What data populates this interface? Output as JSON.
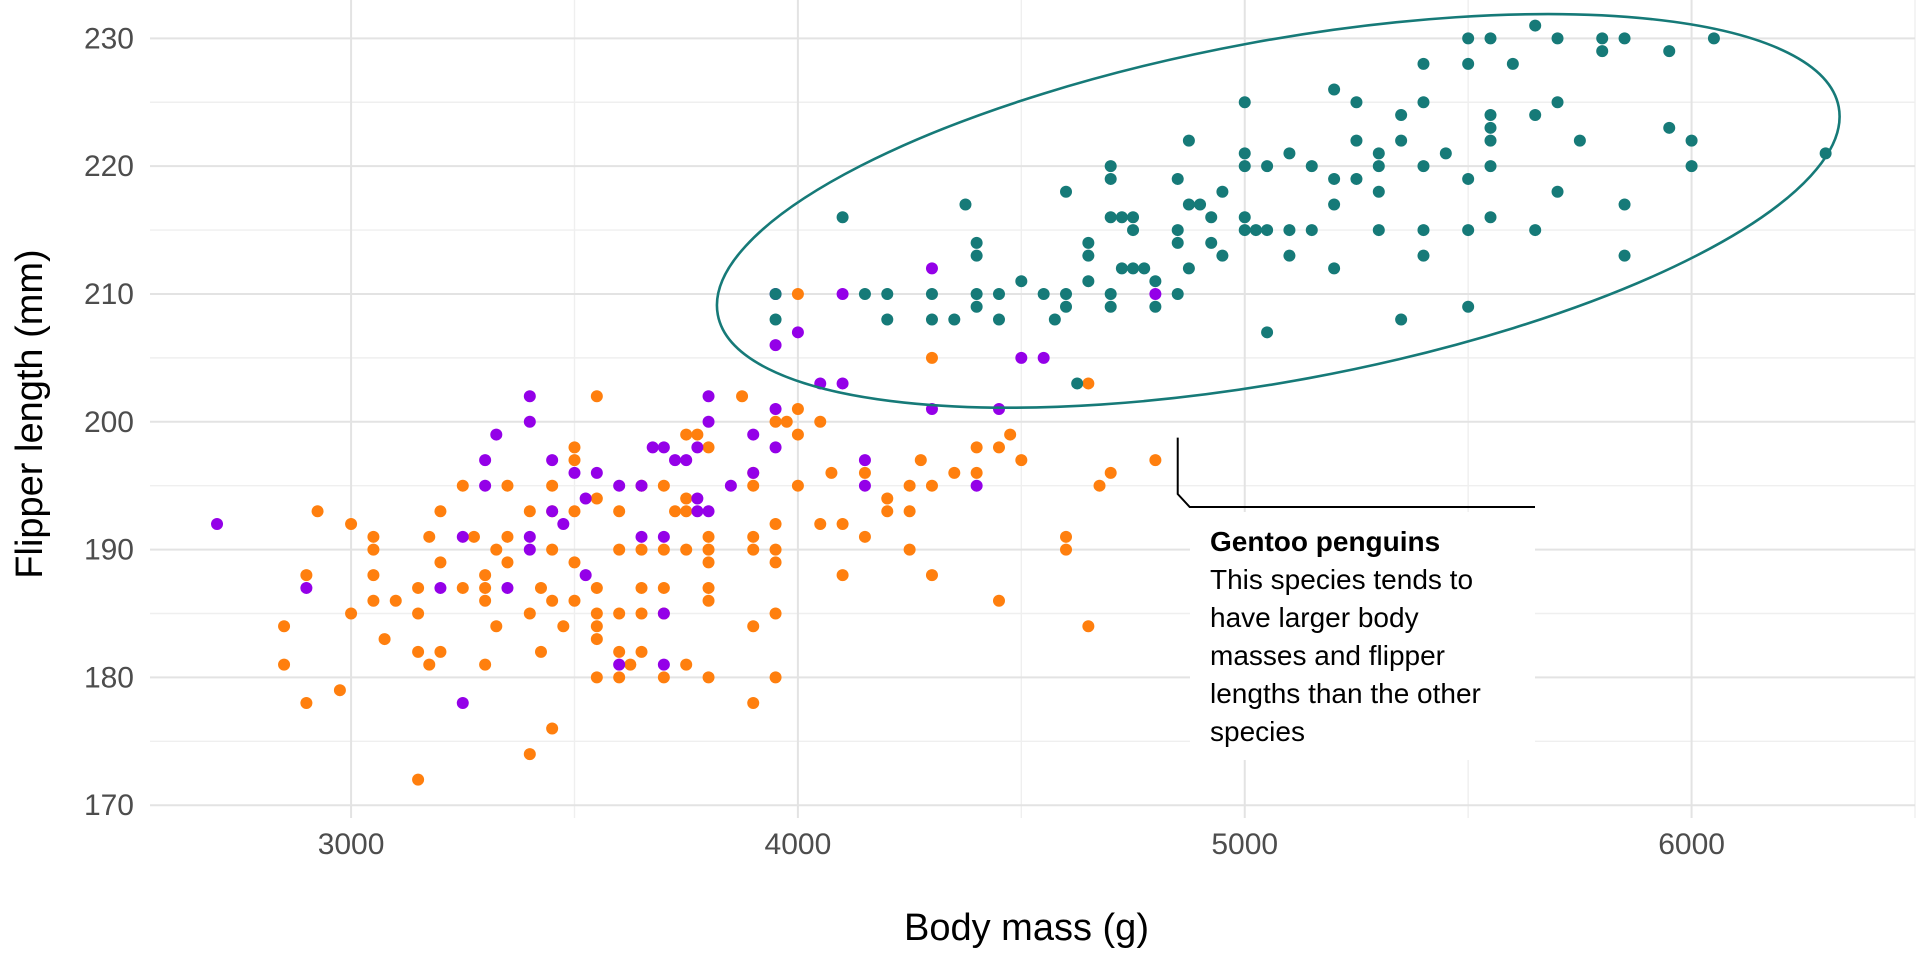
{
  "chart_data": {
    "type": "scatter",
    "title": "",
    "xlabel": "Body mass (g)",
    "ylabel": "Flipper length (mm)",
    "xlim": [
      2550,
      6500
    ],
    "ylim": [
      169,
      233
    ],
    "x_ticks": [
      3000,
      4000,
      5000,
      6000
    ],
    "y_ticks": [
      170,
      180,
      190,
      200,
      210,
      220,
      230
    ],
    "grid": true,
    "legend": "none",
    "point_radius_note": "",
    "series": [
      {
        "color": "#FF7F0E",
        "points": [
          [
            2850,
            184
          ],
          [
            2850,
            181
          ],
          [
            2900,
            188
          ],
          [
            2900,
            178
          ],
          [
            2925,
            193
          ],
          [
            2975,
            179
          ],
          [
            3000,
            192
          ],
          [
            3000,
            185
          ],
          [
            3050,
            191
          ],
          [
            3050,
            190
          ],
          [
            3050,
            188
          ],
          [
            3050,
            186
          ],
          [
            3075,
            183
          ],
          [
            3100,
            186
          ],
          [
            3150,
            187
          ],
          [
            3150,
            185
          ],
          [
            3150,
            182
          ],
          [
            3150,
            172
          ],
          [
            3175,
            191
          ],
          [
            3175,
            181
          ],
          [
            3200,
            193
          ],
          [
            3200,
            189
          ],
          [
            3200,
            182
          ],
          [
            3250,
            195
          ],
          [
            3250,
            187
          ],
          [
            3275,
            191
          ],
          [
            3300,
            188
          ],
          [
            3300,
            187
          ],
          [
            3300,
            186
          ],
          [
            3300,
            181
          ],
          [
            3325,
            190
          ],
          [
            3325,
            184
          ],
          [
            3350,
            195
          ],
          [
            3350,
            191
          ],
          [
            3350,
            189
          ],
          [
            3400,
            193
          ],
          [
            3400,
            185
          ],
          [
            3400,
            174
          ],
          [
            3425,
            182
          ],
          [
            3425,
            187
          ],
          [
            3450,
            195
          ],
          [
            3450,
            193
          ],
          [
            3450,
            190
          ],
          [
            3450,
            186
          ],
          [
            3450,
            176
          ],
          [
            3475,
            184
          ],
          [
            3500,
            198
          ],
          [
            3500,
            197
          ],
          [
            3500,
            193
          ],
          [
            3500,
            189
          ],
          [
            3500,
            186
          ],
          [
            3550,
            202
          ],
          [
            3550,
            194
          ],
          [
            3550,
            187
          ],
          [
            3550,
            185
          ],
          [
            3550,
            184
          ],
          [
            3550,
            183
          ],
          [
            3550,
            180
          ],
          [
            3600,
            193
          ],
          [
            3600,
            190
          ],
          [
            3600,
            185
          ],
          [
            3600,
            182
          ],
          [
            3600,
            180
          ],
          [
            3625,
            181
          ],
          [
            3650,
            195
          ],
          [
            3650,
            190
          ],
          [
            3650,
            187
          ],
          [
            3650,
            185
          ],
          [
            3650,
            182
          ],
          [
            3700,
            195
          ],
          [
            3700,
            190
          ],
          [
            3700,
            187
          ],
          [
            3700,
            185
          ],
          [
            3700,
            180
          ],
          [
            3725,
            193
          ],
          [
            3750,
            199
          ],
          [
            3750,
            194
          ],
          [
            3750,
            193
          ],
          [
            3750,
            190
          ],
          [
            3750,
            181
          ],
          [
            3775,
            199
          ],
          [
            3800,
            198
          ],
          [
            3800,
            191
          ],
          [
            3800,
            190
          ],
          [
            3800,
            189
          ],
          [
            3800,
            187
          ],
          [
            3800,
            186
          ],
          [
            3800,
            180
          ],
          [
            3875,
            202
          ],
          [
            3900,
            196
          ],
          [
            3900,
            195
          ],
          [
            3900,
            191
          ],
          [
            3900,
            190
          ],
          [
            3900,
            184
          ],
          [
            3900,
            178
          ],
          [
            3950,
            200
          ],
          [
            3950,
            192
          ],
          [
            3950,
            190
          ],
          [
            3950,
            189
          ],
          [
            3950,
            185
          ],
          [
            3950,
            180
          ],
          [
            3975,
            200
          ],
          [
            4000,
            210
          ],
          [
            4000,
            201
          ],
          [
            4000,
            199
          ],
          [
            4000,
            195
          ],
          [
            4050,
            200
          ],
          [
            4050,
            192
          ],
          [
            4075,
            196
          ],
          [
            4100,
            192
          ],
          [
            4100,
            188
          ],
          [
            4150,
            191
          ],
          [
            4150,
            196
          ],
          [
            4200,
            194
          ],
          [
            4200,
            193
          ],
          [
            4250,
            190
          ],
          [
            4250,
            195
          ],
          [
            4250,
            193
          ],
          [
            4275,
            197
          ],
          [
            4300,
            205
          ],
          [
            4300,
            195
          ],
          [
            4300,
            188
          ],
          [
            4350,
            196
          ],
          [
            4400,
            198
          ],
          [
            4400,
            196
          ],
          [
            4450,
            198
          ],
          [
            4450,
            186
          ],
          [
            4475,
            199
          ],
          [
            4500,
            197
          ],
          [
            4600,
            191
          ],
          [
            4600,
            190
          ],
          [
            4650,
            203
          ],
          [
            4650,
            184
          ],
          [
            4675,
            195
          ],
          [
            4700,
            196
          ],
          [
            4800,
            197
          ]
        ]
      },
      {
        "color": "#9400E8",
        "points": [
          [
            2700,
            192
          ],
          [
            2900,
            187
          ],
          [
            3200,
            187
          ],
          [
            3250,
            178
          ],
          [
            3250,
            191
          ],
          [
            3300,
            197
          ],
          [
            3300,
            195
          ],
          [
            3325,
            199
          ],
          [
            3350,
            187
          ],
          [
            3400,
            202
          ],
          [
            3400,
            200
          ],
          [
            3400,
            191
          ],
          [
            3400,
            190
          ],
          [
            3450,
            197
          ],
          [
            3450,
            193
          ],
          [
            3475,
            192
          ],
          [
            3500,
            196
          ],
          [
            3525,
            194
          ],
          [
            3525,
            188
          ],
          [
            3550,
            196
          ],
          [
            3600,
            195
          ],
          [
            3600,
            181
          ],
          [
            3650,
            195
          ],
          [
            3650,
            191
          ],
          [
            3675,
            198
          ],
          [
            3700,
            198
          ],
          [
            3700,
            191
          ],
          [
            3700,
            185
          ],
          [
            3700,
            181
          ],
          [
            3725,
            197
          ],
          [
            3750,
            197
          ],
          [
            3775,
            198
          ],
          [
            3775,
            194
          ],
          [
            3775,
            193
          ],
          [
            3800,
            202
          ],
          [
            3800,
            200
          ],
          [
            3800,
            193
          ],
          [
            3850,
            195
          ],
          [
            3900,
            199
          ],
          [
            3900,
            196
          ],
          [
            3950,
            210
          ],
          [
            3950,
            206
          ],
          [
            3950,
            201
          ],
          [
            3950,
            198
          ],
          [
            4000,
            207
          ],
          [
            4050,
            203
          ],
          [
            4100,
            210
          ],
          [
            4100,
            203
          ],
          [
            4150,
            197
          ],
          [
            4150,
            195
          ],
          [
            4300,
            212
          ],
          [
            4300,
            201
          ],
          [
            4400,
            195
          ],
          [
            4450,
            201
          ],
          [
            4500,
            205
          ],
          [
            4550,
            205
          ],
          [
            4800,
            210
          ]
        ]
      },
      {
        "color": "#167A78",
        "points": [
          [
            3950,
            210
          ],
          [
            3950,
            208
          ],
          [
            4100,
            216
          ],
          [
            4150,
            210
          ],
          [
            4200,
            210
          ],
          [
            4200,
            208
          ],
          [
            4300,
            210
          ],
          [
            4300,
            208
          ],
          [
            4350,
            208
          ],
          [
            4375,
            217
          ],
          [
            4400,
            214
          ],
          [
            4400,
            213
          ],
          [
            4400,
            210
          ],
          [
            4400,
            209
          ],
          [
            4450,
            210
          ],
          [
            4450,
            208
          ],
          [
            4500,
            211
          ],
          [
            4550,
            210
          ],
          [
            4575,
            208
          ],
          [
            4600,
            218
          ],
          [
            4600,
            210
          ],
          [
            4600,
            209
          ],
          [
            4625,
            203
          ],
          [
            4650,
            214
          ],
          [
            4650,
            213
          ],
          [
            4650,
            211
          ],
          [
            4700,
            220
          ],
          [
            4700,
            219
          ],
          [
            4700,
            216
          ],
          [
            4700,
            210
          ],
          [
            4700,
            209
          ],
          [
            4725,
            216
          ],
          [
            4725,
            212
          ],
          [
            4750,
            216
          ],
          [
            4750,
            215
          ],
          [
            4750,
            212
          ],
          [
            4775,
            212
          ],
          [
            4800,
            211
          ],
          [
            4800,
            209
          ],
          [
            4850,
            219
          ],
          [
            4850,
            215
          ],
          [
            4850,
            214
          ],
          [
            4850,
            210
          ],
          [
            4875,
            222
          ],
          [
            4875,
            217
          ],
          [
            4875,
            212
          ],
          [
            4900,
            217
          ],
          [
            4925,
            216
          ],
          [
            4925,
            214
          ],
          [
            4950,
            218
          ],
          [
            4950,
            213
          ],
          [
            5000,
            225
          ],
          [
            5000,
            221
          ],
          [
            5000,
            220
          ],
          [
            5000,
            216
          ],
          [
            5000,
            215
          ],
          [
            5025,
            215
          ],
          [
            5050,
            220
          ],
          [
            5050,
            215
          ],
          [
            5050,
            207
          ],
          [
            5100,
            221
          ],
          [
            5100,
            215
          ],
          [
            5100,
            213
          ],
          [
            5150,
            220
          ],
          [
            5150,
            215
          ],
          [
            5200,
            226
          ],
          [
            5200,
            219
          ],
          [
            5200,
            217
          ],
          [
            5200,
            212
          ],
          [
            5250,
            225
          ],
          [
            5250,
            222
          ],
          [
            5250,
            219
          ],
          [
            5300,
            221
          ],
          [
            5300,
            220
          ],
          [
            5300,
            218
          ],
          [
            5300,
            215
          ],
          [
            5350,
            224
          ],
          [
            5350,
            222
          ],
          [
            5350,
            208
          ],
          [
            5400,
            228
          ],
          [
            5400,
            225
          ],
          [
            5400,
            220
          ],
          [
            5400,
            215
          ],
          [
            5400,
            213
          ],
          [
            5450,
            221
          ],
          [
            5500,
            230
          ],
          [
            5500,
            228
          ],
          [
            5500,
            219
          ],
          [
            5500,
            215
          ],
          [
            5500,
            209
          ],
          [
            5550,
            230
          ],
          [
            5550,
            224
          ],
          [
            5550,
            223
          ],
          [
            5550,
            222
          ],
          [
            5550,
            220
          ],
          [
            5550,
            216
          ],
          [
            5600,
            228
          ],
          [
            5650,
            231
          ],
          [
            5650,
            224
          ],
          [
            5650,
            215
          ],
          [
            5700,
            230
          ],
          [
            5700,
            225
          ],
          [
            5700,
            218
          ],
          [
            5750,
            222
          ],
          [
            5800,
            230
          ],
          [
            5800,
            229
          ],
          [
            5850,
            230
          ],
          [
            5850,
            217
          ],
          [
            5850,
            213
          ],
          [
            5950,
            229
          ],
          [
            5950,
            223
          ],
          [
            6000,
            222
          ],
          [
            6000,
            220
          ],
          [
            6050,
            230
          ],
          [
            6300,
            221
          ]
        ]
      }
    ],
    "ellipse": {
      "color": "#167A78",
      "center": [
        5075,
        216.5
      ],
      "note": "encloses the Gentoo cluster"
    },
    "annotation": {
      "title": "Gentoo penguins",
      "lines": [
        "This species tends to",
        "have larger body",
        "masses and flipper",
        "lengths than the other",
        "species"
      ],
      "anchor": [
        4850,
        199
      ]
    }
  }
}
